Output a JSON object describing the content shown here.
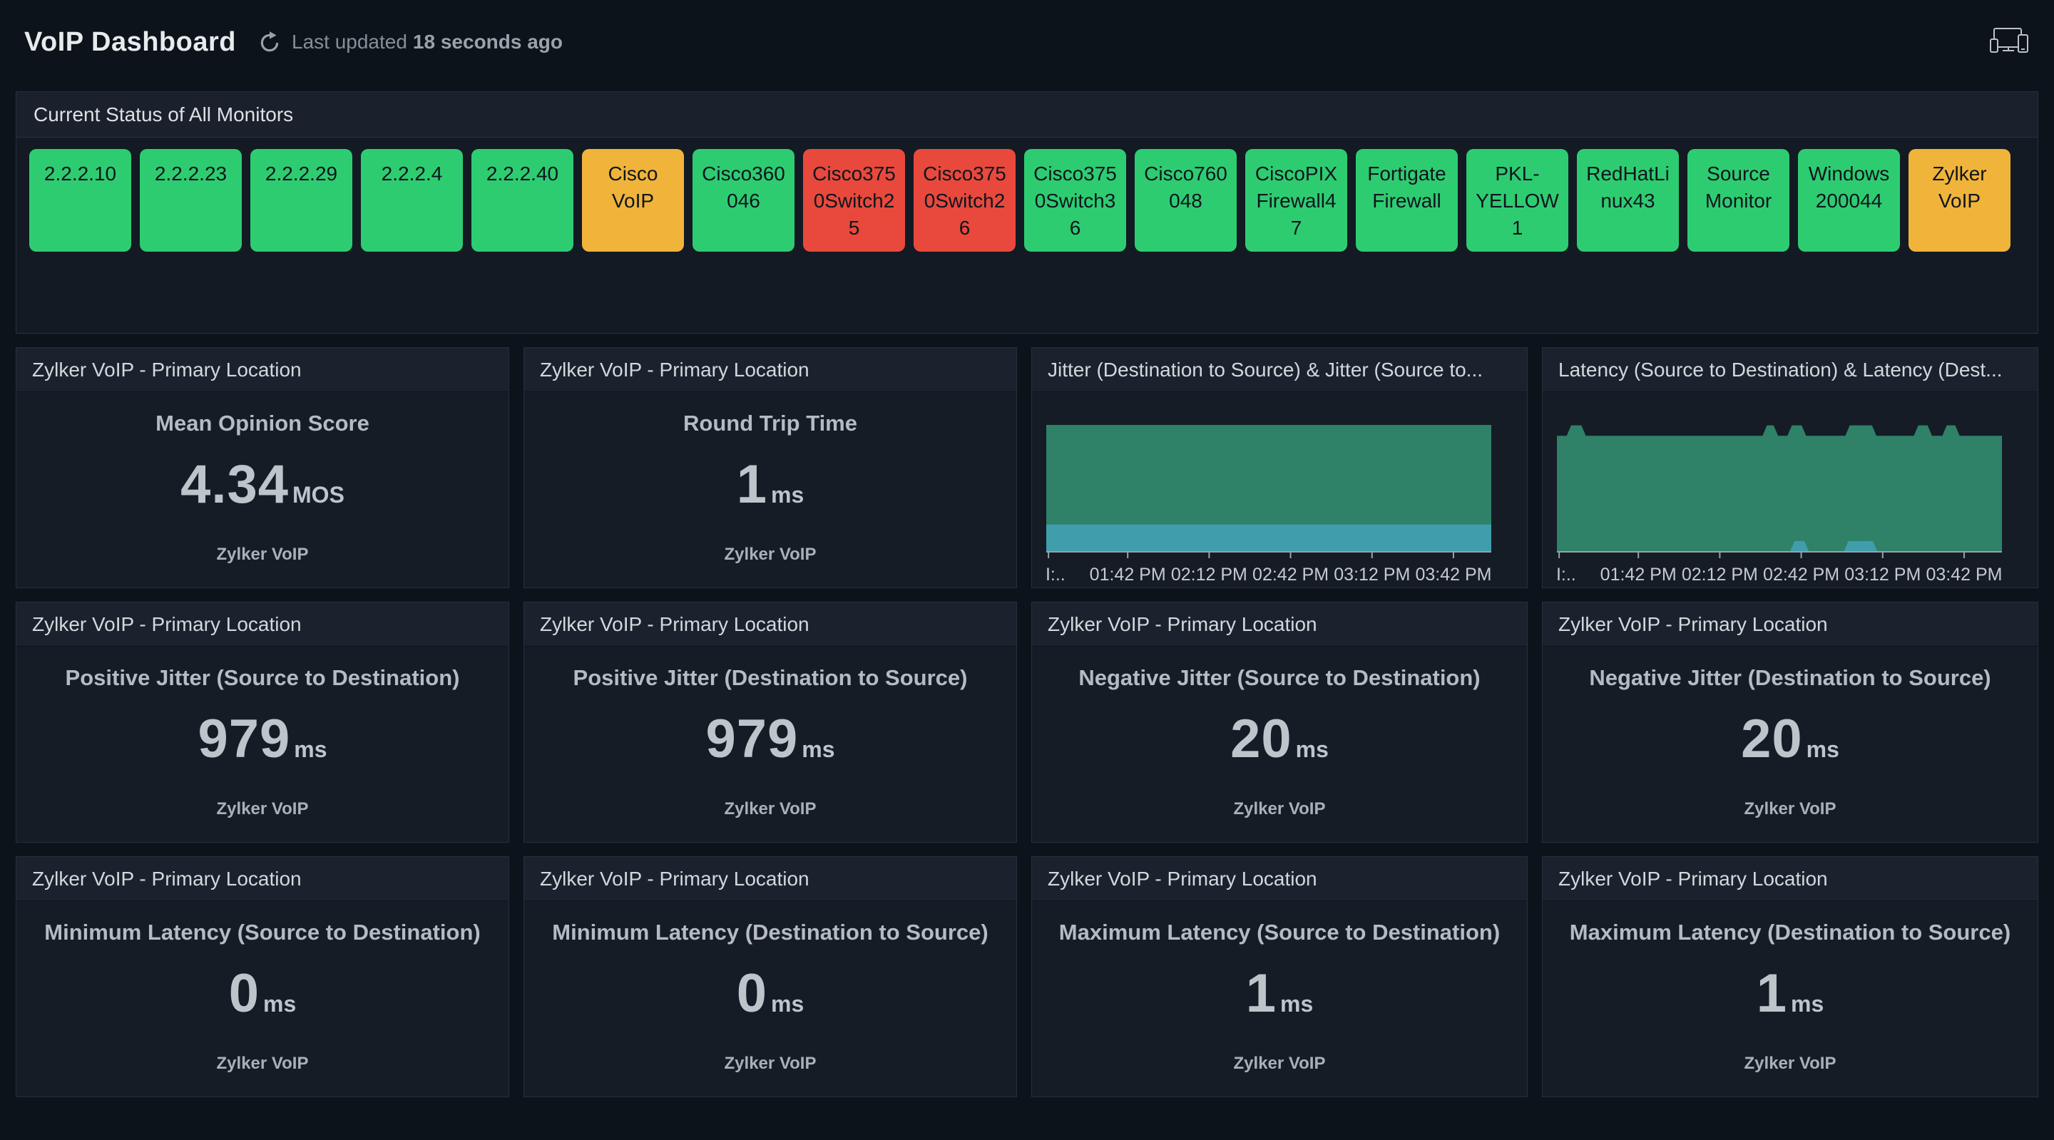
{
  "topbar": {
    "title": "VoIP Dashboard",
    "last_updated_prefix": "Last updated",
    "last_updated_value": "18 seconds ago"
  },
  "colors": {
    "up": "#2ecc71",
    "trouble": "#f0b43a",
    "critical": "#e8493c",
    "chart_green": "#2f8168",
    "chart_blue": "#3f9dac",
    "axis": "#99a1a9"
  },
  "monitor_status": {
    "title": "Current Status of All Monitors",
    "tiles": [
      {
        "label": "2.2.2.10",
        "status": "up"
      },
      {
        "label": "2.2.2.23",
        "status": "up"
      },
      {
        "label": "2.2.2.29",
        "status": "up"
      },
      {
        "label": "2.2.2.4",
        "status": "up"
      },
      {
        "label": "2.2.2.40",
        "status": "up"
      },
      {
        "label": "Cisco VoIP",
        "status": "trouble"
      },
      {
        "label": "Cisco360046",
        "status": "up"
      },
      {
        "label": "Cisco3750Switch25",
        "status": "critical"
      },
      {
        "label": "Cisco3750Switch26",
        "status": "critical"
      },
      {
        "label": "Cisco3750Switch36",
        "status": "up"
      },
      {
        "label": "Cisco760048",
        "status": "up"
      },
      {
        "label": "CiscoPIX Firewall47",
        "status": "up"
      },
      {
        "label": "Fortigate Firewall",
        "status": "up"
      },
      {
        "label": "PKL-YELLOW1",
        "status": "up"
      },
      {
        "label": "RedHatLinux43",
        "status": "up"
      },
      {
        "label": "Source Monitor",
        "status": "up"
      },
      {
        "label": "Windows 200044",
        "status": "up"
      },
      {
        "label": "Zylker VoIP",
        "status": "trouble"
      }
    ]
  },
  "cards": [
    {
      "header": "Zylker VoIP - Primary Location",
      "metric": "Mean Opinion Score",
      "value": "4.34",
      "unit": "MOS",
      "footer": "Zylker VoIP"
    },
    {
      "header": "Zylker VoIP - Primary Location",
      "metric": "Round Trip Time",
      "value": "1",
      "unit": "ms",
      "footer": "Zylker VoIP"
    },
    {
      "header": "Jitter (Destination to Source) & Jitter (Source to..."
    },
    {
      "header": "Latency (Source to Destination) & Latency (Dest..."
    },
    {
      "header": "Zylker VoIP - Primary Location",
      "metric": "Positive Jitter (Source to Destination)",
      "value": "979",
      "unit": "ms",
      "footer": "Zylker VoIP"
    },
    {
      "header": "Zylker VoIP - Primary Location",
      "metric": "Positive Jitter (Destination to Source)",
      "value": "979",
      "unit": "ms",
      "footer": "Zylker VoIP"
    },
    {
      "header": "Zylker VoIP - Primary Location",
      "metric": "Negative Jitter (Source to Destination)",
      "value": "20",
      "unit": "ms",
      "footer": "Zylker VoIP"
    },
    {
      "header": "Zylker VoIP - Primary Location",
      "metric": "Negative Jitter (Destination to Source)",
      "value": "20",
      "unit": "ms",
      "footer": "Zylker VoIP"
    },
    {
      "header": "Zylker VoIP - Primary Location",
      "metric": "Minimum Latency (Source to Destination)",
      "value": "0",
      "unit": "ms",
      "footer": "Zylker VoIP"
    },
    {
      "header": "Zylker VoIP - Primary Location",
      "metric": "Minimum Latency (Destination to Source)",
      "value": "0",
      "unit": "ms",
      "footer": "Zylker VoIP"
    },
    {
      "header": "Zylker VoIP - Primary Location",
      "metric": "Maximum Latency (Source to Destination)",
      "value": "1",
      "unit": "ms",
      "footer": "Zylker VoIP"
    },
    {
      "header": "Zylker VoIP - Primary Location",
      "metric": "Maximum Latency (Destination to Source)",
      "value": "1",
      "unit": "ms",
      "footer": "Zylker VoIP"
    }
  ],
  "chart_data": [
    {
      "type": "area",
      "title": "Jitter (Destination to Source) & Jitter (Source to Destination)",
      "xlabel": "",
      "ylabel": "",
      "x_ticks": [
        "I:..",
        "01:42 PM",
        "02:12 PM",
        "02:42 PM",
        "03:12 PM",
        "03:42 PM"
      ],
      "tick_positions": [
        0.005,
        0.183,
        0.366,
        0.549,
        0.732,
        0.915
      ],
      "legend_position": "none",
      "grid": false,
      "points_format": "[x_fraction_of_time_axis, value_fraction_of_plot_height] (y axis unlabeled in source)",
      "series": [
        {
          "name": "Jitter (Destination to Source)",
          "color": "#2f8168",
          "points": [
            [
              0,
              0.908
            ],
            [
              1,
              0.908
            ]
          ]
        },
        {
          "name": "Jitter (Source to Destination)",
          "color": "#3f9dac",
          "points": [
            [
              0,
              0.196
            ],
            [
              1,
              0.196
            ]
          ]
        }
      ]
    },
    {
      "type": "area",
      "title": "Latency (Source to Destination) & Latency (Destination to Source)",
      "xlabel": "",
      "ylabel": "",
      "x_ticks": [
        "I:..",
        "01:42 PM",
        "02:12 PM",
        "02:42 PM",
        "03:12 PM",
        "03:42 PM"
      ],
      "tick_positions": [
        0.005,
        0.183,
        0.366,
        0.549,
        0.732,
        0.915
      ],
      "legend_position": "none",
      "grid": false,
      "points_format": "[x_fraction_of_time_axis, value_fraction_of_plot_height] (y axis unlabeled in source)",
      "series": [
        {
          "name": "Latency (Source to Destination)",
          "color": "#2f8168",
          "points": [
            [
              0,
              0.83
            ],
            [
              0.022,
              0.83
            ],
            [
              0.032,
              0.905
            ],
            [
              0.055,
              0.905
            ],
            [
              0.065,
              0.83
            ],
            [
              0.462,
              0.83
            ],
            [
              0.472,
              0.905
            ],
            [
              0.487,
              0.905
            ],
            [
              0.497,
              0.83
            ],
            [
              0.518,
              0.83
            ],
            [
              0.528,
              0.905
            ],
            [
              0.55,
              0.905
            ],
            [
              0.56,
              0.83
            ],
            [
              0.648,
              0.83
            ],
            [
              0.658,
              0.905
            ],
            [
              0.708,
              0.905
            ],
            [
              0.718,
              0.83
            ],
            [
              0.802,
              0.83
            ],
            [
              0.812,
              0.905
            ],
            [
              0.833,
              0.905
            ],
            [
              0.843,
              0.83
            ],
            [
              0.866,
              0.83
            ],
            [
              0.876,
              0.905
            ],
            [
              0.895,
              0.905
            ],
            [
              0.905,
              0.83
            ],
            [
              1,
              0.83
            ]
          ]
        },
        {
          "name": "Latency (Destination to Source)",
          "color": "#3f9dac",
          "points": [
            [
              0,
              0.004
            ],
            [
              0.524,
              0.004
            ],
            [
              0.534,
              0.077
            ],
            [
              0.556,
              0.077
            ],
            [
              0.566,
              0.004
            ],
            [
              0.645,
              0.004
            ],
            [
              0.655,
              0.077
            ],
            [
              0.71,
              0.077
            ],
            [
              0.72,
              0.004
            ],
            [
              1,
              0.004
            ]
          ]
        }
      ]
    }
  ]
}
